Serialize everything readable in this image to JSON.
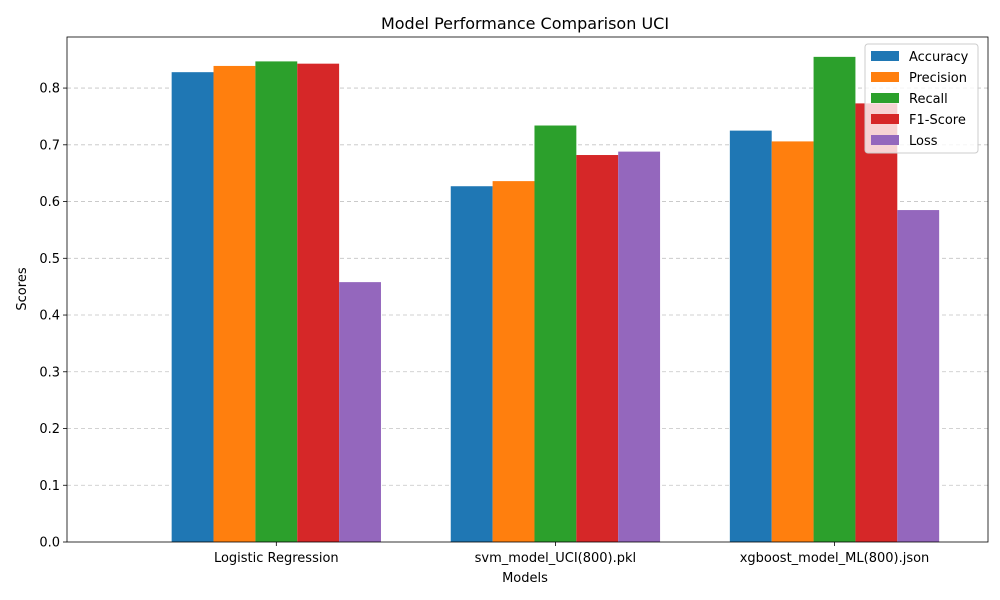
{
  "chart_data": {
    "type": "bar",
    "title": "Model Performance Comparison UCI",
    "xlabel": "Models",
    "ylabel": "Scores",
    "categories": [
      "Logistic Regression",
      "svm_model_UCI(800).pkl",
      "xgboost_model_ML(800).json"
    ],
    "series": [
      {
        "name": "Accuracy",
        "color": "#1f77b4",
        "values": [
          0.828,
          0.627,
          0.725
        ]
      },
      {
        "name": "Precision",
        "color": "#ff7f0e",
        "values": [
          0.839,
          0.636,
          0.706
        ]
      },
      {
        "name": "Recall",
        "color": "#2ca02c",
        "values": [
          0.847,
          0.734,
          0.855
        ]
      },
      {
        "name": "F1-Score",
        "color": "#d62728",
        "values": [
          0.843,
          0.682,
          0.773
        ]
      },
      {
        "name": "Loss",
        "color": "#9467bd",
        "values": [
          0.458,
          0.688,
          0.585
        ]
      }
    ],
    "ylim": [
      0,
      0.89
    ],
    "yticks": [
      "0.0",
      "0.1",
      "0.2",
      "0.3",
      "0.4",
      "0.5",
      "0.6",
      "0.7",
      "0.8"
    ],
    "grid": "y-dashed",
    "legend_position": "top-right"
  }
}
